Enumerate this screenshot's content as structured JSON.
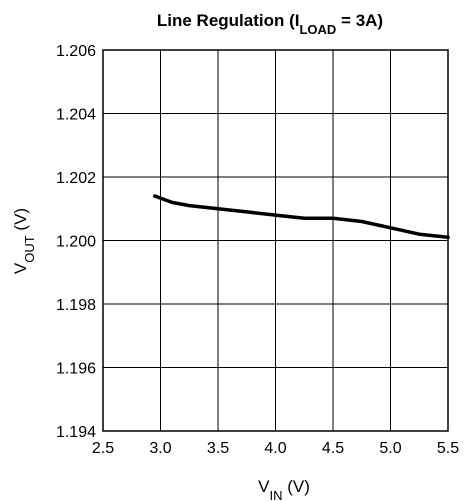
{
  "chart_data": {
    "type": "line",
    "title": {
      "prefix": "Line Regulation (I",
      "subscript": "LOAD",
      "suffix": " = 3A)"
    },
    "xlabel": {
      "main": "V",
      "subscript": "IN",
      "unit": " (V)"
    },
    "ylabel": {
      "main": "V",
      "subscript": "OUT",
      "unit": " (V)"
    },
    "xlim": [
      2.5,
      5.5
    ],
    "ylim": [
      1.194,
      1.206
    ],
    "x_ticks": [
      "2.5",
      "3.0",
      "3.5",
      "4.0",
      "4.5",
      "5.0",
      "5.5"
    ],
    "y_ticks": [
      "1.194",
      "1.196",
      "1.198",
      "1.200",
      "1.202",
      "1.204",
      "1.206"
    ],
    "grid": true,
    "series": [
      {
        "x": [
          2.95,
          3.1,
          3.25,
          3.5,
          3.75,
          4.0,
          4.25,
          4.5,
          4.75,
          5.0,
          5.25,
          5.5
        ],
        "y": [
          1.2014,
          1.2012,
          1.2011,
          1.201,
          1.2009,
          1.2008,
          1.2007,
          1.2007,
          1.2006,
          1.2004,
          1.2002,
          1.2001
        ],
        "color": "#000000"
      }
    ]
  }
}
